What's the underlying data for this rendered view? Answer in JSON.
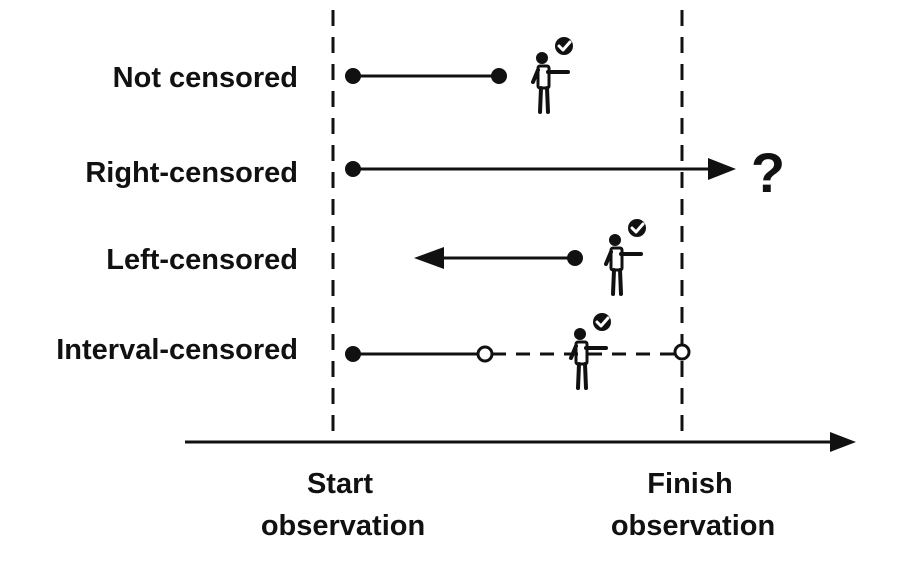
{
  "rows": {
    "not_censored": {
      "label": "Not censored"
    },
    "right_censored": {
      "label": "Right-censored",
      "unknown_mark": "?"
    },
    "left_censored": {
      "label": "Left-censored"
    },
    "interval_censored": {
      "label": "Interval-censored"
    }
  },
  "axis": {
    "start_line1": "Start",
    "start_line2": "observation",
    "finish_line1": "Finish",
    "finish_line2": "observation"
  },
  "icons": {
    "event": "person-with-checkmark-icon"
  },
  "colors": {
    "ink": "#111111",
    "background": "#ffffff"
  }
}
